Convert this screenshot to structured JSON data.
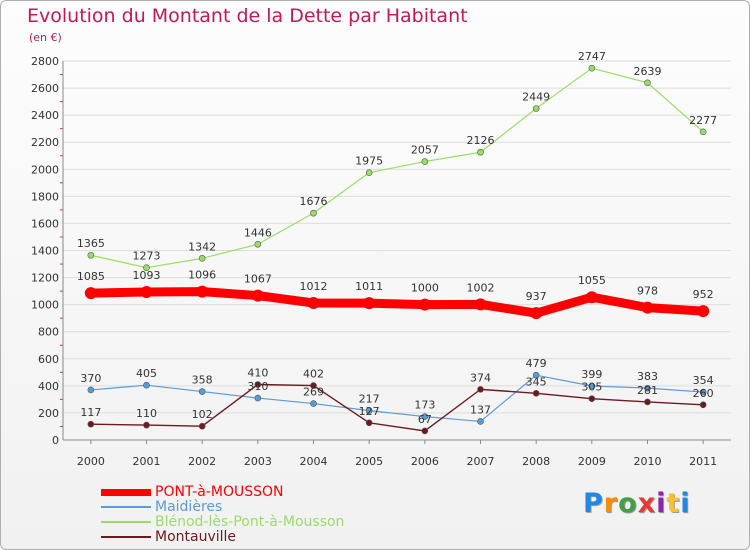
{
  "chart_data": {
    "type": "line",
    "title": "Evolution du Montant de la Dette par Habitant",
    "subtitle": "(en €)",
    "xlabel": "",
    "ylabel": "",
    "categories": [
      "2000",
      "2001",
      "2002",
      "2003",
      "2004",
      "2005",
      "2006",
      "2007",
      "2008",
      "2009",
      "2010",
      "2011"
    ],
    "ylim": [
      0,
      2800
    ],
    "yticks": [
      0,
      200,
      400,
      600,
      800,
      1000,
      1200,
      1400,
      1600,
      1800,
      2000,
      2200,
      2400,
      2600,
      2800
    ],
    "grid": true,
    "legend_position": "bottom-left",
    "series": [
      {
        "name": "PONT-à-MOUSSON",
        "color": "#ff0000",
        "values": [
          1085,
          1093,
          1096,
          1067,
          1012,
          1011,
          1000,
          1002,
          937,
          1055,
          978,
          952
        ]
      },
      {
        "name": "Maidières",
        "color": "#5b9bd5",
        "values": [
          370,
          405,
          358,
          310,
          269,
          217,
          173,
          137,
          479,
          399,
          383,
          354
        ]
      },
      {
        "name": "Blénod-lès-Pont-à-Mousson",
        "color": "#99dd66",
        "values": [
          1365,
          1273,
          1342,
          1446,
          1676,
          1975,
          2057,
          2126,
          2449,
          2747,
          2639,
          2277
        ]
      },
      {
        "name": "Montauville",
        "color": "#6b1a1f",
        "values": [
          117,
          110,
          102,
          410,
          402,
          127,
          67,
          374,
          345,
          305,
          281,
          260
        ]
      }
    ]
  },
  "logo": {
    "text": "Proxiti",
    "colors": [
      "#1e88e5",
      "#fb8c00",
      "#43a047",
      "#e53935",
      "#8e24aa",
      "#fbc02d",
      "#1e88e5"
    ]
  }
}
